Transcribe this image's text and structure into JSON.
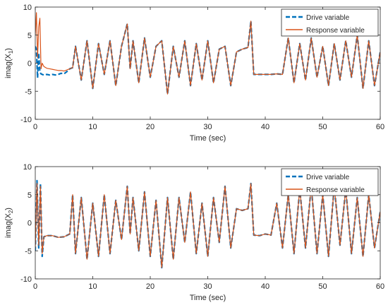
{
  "colors": {
    "drive": "#0072BD",
    "response": "#D95319",
    "axis": "#262626",
    "legend_border": "#262626"
  },
  "chart_data": [
    {
      "type": "line",
      "xlabel": "Time (sec)",
      "ylabel": "imag(X",
      "ylabel_sub": "1",
      "ylabel_close": ")",
      "xlim": [
        0,
        60
      ],
      "ylim": [
        -10,
        10
      ],
      "xticks": [
        0,
        10,
        20,
        30,
        40,
        50,
        60
      ],
      "yticks": [
        -10,
        -5,
        0,
        5,
        10
      ],
      "legend_position": "top-right",
      "grid": false,
      "series": [
        {
          "name": "Drive variable",
          "style": "dashed",
          "x": [
            0,
            0.2,
            0.4,
            0.6,
            0.8,
            1.0,
            1.2,
            1.5,
            2.0,
            2.5,
            3.0,
            3.5,
            4.0,
            4.5,
            5.0,
            5.5,
            6.0,
            6.5,
            7.0,
            8.0,
            9.0,
            10.0,
            11.0,
            12.0,
            13.0,
            14.0,
            15.0,
            16.0,
            16.5,
            17.0,
            18.0,
            19.0,
            20.0,
            21.0,
            22.0,
            23.0,
            24.0,
            25.0,
            26.0,
            27.0,
            28.0,
            29.0,
            30.0,
            31.0,
            32.0,
            33.0,
            34.0,
            35.0,
            36.0,
            37.0,
            37.5,
            38.0,
            39.0,
            40.0,
            41.0,
            42.0,
            43.0,
            44.0,
            45.0,
            46.0,
            47.0,
            48.0,
            49.0,
            50.0,
            51.0,
            52.0,
            53.0,
            54.0,
            55.0,
            56.0,
            57.0,
            58.0,
            59.0,
            60.0
          ],
          "y": [
            3.0,
            2.5,
            -2.6,
            1.8,
            -1.6,
            -1.9,
            -2.0,
            -2.1,
            -2.0,
            -2.1,
            -2.0,
            -2.1,
            -2.0,
            -1.8,
            -1.9,
            -1.5,
            -1.0,
            -0.8,
            3.0,
            -3.0,
            4.0,
            -4.5,
            3.5,
            -2.0,
            4.0,
            -4.0,
            3.0,
            7.0,
            -1.0,
            4.0,
            -3.5,
            4.5,
            -2.5,
            3.0,
            4.0,
            -5.5,
            3.0,
            -2.5,
            4.0,
            -4.0,
            3.5,
            -3.0,
            4.0,
            -3.5,
            2.5,
            3.0,
            -4.0,
            2.0,
            2.5,
            2.8,
            7.5,
            -2.0,
            -2.0,
            -2.0,
            -2.0,
            -1.9,
            -2.0,
            4.5,
            -3.5,
            3.5,
            -3.0,
            4.5,
            -2.5,
            3.0,
            -4.0,
            3.5,
            -3.0,
            4.0,
            -2.5,
            5.0,
            -4.5,
            4.0,
            -4.0,
            2.0
          ]
        },
        {
          "name": "Response variable",
          "style": "solid",
          "x": [
            0,
            0.2,
            0.4,
            0.6,
            0.8,
            1.0,
            1.2,
            1.5,
            2.0,
            2.5,
            3.0,
            3.5,
            4.0,
            4.5,
            5.0,
            5.5,
            6.0,
            6.5,
            7.0,
            8.0,
            9.0,
            10.0,
            11.0,
            12.0,
            13.0,
            14.0,
            15.0,
            16.0,
            16.5,
            17.0,
            18.0,
            19.0,
            20.0,
            21.0,
            22.0,
            23.0,
            24.0,
            25.0,
            26.0,
            27.0,
            28.0,
            29.0,
            30.0,
            31.0,
            32.0,
            33.0,
            34.0,
            35.0,
            36.0,
            37.0,
            37.5,
            38.0,
            39.0,
            40.0,
            41.0,
            42.0,
            43.0,
            44.0,
            45.0,
            46.0,
            47.0,
            48.0,
            49.0,
            50.0,
            51.0,
            52.0,
            53.0,
            54.0,
            55.0,
            56.0,
            57.0,
            58.0,
            59.0,
            60.0
          ],
          "y": [
            5.0,
            9.0,
            1.0,
            6.5,
            8.0,
            -1.0,
            0.0,
            -0.6,
            -0.9,
            -1.0,
            -1.1,
            -1.2,
            -1.3,
            -1.3,
            -1.4,
            -1.2,
            -1.0,
            -0.8,
            3.0,
            -3.0,
            4.0,
            -4.5,
            3.5,
            -2.0,
            4.0,
            -4.0,
            3.0,
            7.0,
            -1.0,
            4.0,
            -3.5,
            4.5,
            -2.5,
            3.0,
            4.0,
            -5.5,
            3.0,
            -2.5,
            4.0,
            -4.0,
            3.5,
            -3.0,
            4.0,
            -3.5,
            2.5,
            3.0,
            -4.0,
            2.0,
            2.5,
            2.8,
            7.5,
            -2.0,
            -2.0,
            -2.0,
            -2.0,
            -1.9,
            -2.0,
            4.5,
            -3.5,
            3.5,
            -3.0,
            4.5,
            -2.5,
            3.0,
            -4.0,
            3.5,
            -3.0,
            4.0,
            -2.5,
            5.0,
            -4.5,
            4.0,
            -4.0,
            2.0
          ]
        }
      ]
    },
    {
      "type": "line",
      "xlabel": "Time (sec)",
      "ylabel": "imag(X",
      "ylabel_sub": "2",
      "ylabel_close": ")",
      "xlim": [
        0,
        60
      ],
      "ylim": [
        -10,
        10
      ],
      "xticks": [
        0,
        10,
        20,
        30,
        40,
        50,
        60
      ],
      "yticks": [
        -10,
        -5,
        0,
        5,
        10
      ],
      "legend_position": "top-right",
      "grid": false,
      "series": [
        {
          "name": "Drive variable",
          "style": "dashed",
          "x": [
            0,
            0.3,
            0.6,
            0.9,
            1.2,
            1.5,
            2.0,
            3.0,
            4.0,
            5.0,
            6.0,
            6.5,
            7.0,
            8.0,
            9.0,
            10.0,
            11.0,
            12.0,
            13.0,
            14.0,
            15.0,
            16.0,
            16.5,
            17.0,
            18.0,
            19.0,
            20.0,
            21.0,
            22.0,
            23.0,
            24.0,
            25.0,
            26.0,
            27.0,
            28.0,
            29.0,
            30.0,
            31.0,
            32.0,
            33.0,
            34.0,
            35.0,
            36.0,
            37.0,
            37.5,
            38.0,
            39.0,
            40.0,
            41.0,
            42.0,
            43.0,
            44.0,
            45.0,
            46.0,
            47.0,
            48.0,
            49.0,
            50.0,
            51.0,
            52.0,
            53.0,
            54.0,
            55.0,
            56.0,
            57.0,
            58.0,
            59.0,
            60.0
          ],
          "y": [
            -5.0,
            7.5,
            -4.5,
            7.0,
            -6.0,
            -2.5,
            -2.3,
            -2.3,
            -2.6,
            -2.5,
            -2.0,
            5.0,
            -5.5,
            4.5,
            -6.5,
            3.5,
            -6.0,
            5.0,
            -5.5,
            4.0,
            -3.0,
            6.5,
            -2.0,
            4.5,
            -5.0,
            5.5,
            -6.0,
            4.0,
            -8.0,
            4.5,
            -6.5,
            4.5,
            -3.5,
            5.5,
            -5.5,
            3.5,
            -6.0,
            4.5,
            -3.5,
            6.5,
            -4.5,
            2.5,
            2.2,
            2.5,
            7.0,
            -2.2,
            -2.3,
            -2.0,
            -2.2,
            3.5,
            -4.5,
            5.0,
            -5.5,
            6.0,
            -4.5,
            6.5,
            -5.5,
            5.0,
            -6.0,
            6.5,
            -4.0,
            6.0,
            -5.5,
            4.5,
            -6.0,
            5.0,
            -4.5,
            2.0
          ]
        },
        {
          "name": "Response variable",
          "style": "solid",
          "x": [
            0,
            0.3,
            0.6,
            0.9,
            1.2,
            1.5,
            2.0,
            3.0,
            4.0,
            5.0,
            6.0,
            6.5,
            7.0,
            8.0,
            9.0,
            10.0,
            11.0,
            12.0,
            13.0,
            14.0,
            15.0,
            16.0,
            16.5,
            17.0,
            18.0,
            19.0,
            20.0,
            21.0,
            22.0,
            23.0,
            24.0,
            25.0,
            26.0,
            27.0,
            28.0,
            29.0,
            30.0,
            31.0,
            32.0,
            33.0,
            34.0,
            35.0,
            36.0,
            37.0,
            37.5,
            38.0,
            39.0,
            40.0,
            41.0,
            42.0,
            43.0,
            44.0,
            45.0,
            46.0,
            47.0,
            48.0,
            49.0,
            50.0,
            51.0,
            52.0,
            53.0,
            54.0,
            55.0,
            56.0,
            57.0,
            58.0,
            59.0,
            60.0
          ],
          "y": [
            -4.5,
            7.0,
            -4.0,
            6.5,
            -5.5,
            -2.5,
            -2.3,
            -2.3,
            -2.6,
            -2.5,
            -2.0,
            5.0,
            -5.5,
            4.5,
            -6.5,
            3.5,
            -6.0,
            5.0,
            -5.5,
            4.0,
            -3.0,
            6.5,
            -2.0,
            4.5,
            -5.0,
            5.5,
            -6.0,
            4.0,
            -8.0,
            4.5,
            -6.5,
            4.5,
            -3.5,
            5.5,
            -5.5,
            3.5,
            -6.0,
            4.5,
            -3.5,
            6.5,
            -4.5,
            2.5,
            2.2,
            2.5,
            7.0,
            -2.2,
            -2.3,
            -2.0,
            -2.2,
            3.5,
            -4.5,
            5.0,
            -5.5,
            6.0,
            -4.5,
            6.5,
            -5.5,
            5.0,
            -6.0,
            6.5,
            -4.0,
            6.0,
            -5.5,
            4.5,
            -6.0,
            5.0,
            -4.5,
            2.0
          ]
        }
      ]
    }
  ]
}
